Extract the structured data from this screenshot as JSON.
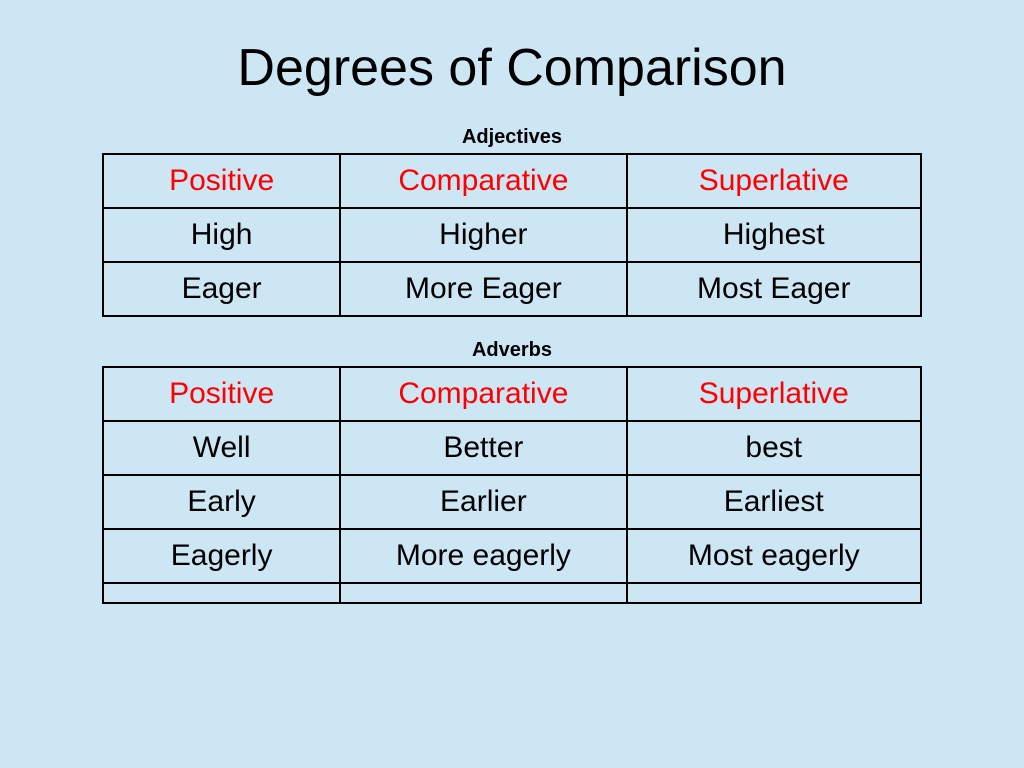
{
  "page": {
    "title": "Degrees of Comparison",
    "background_color": "#cce6f4",
    "title_fontsize": 52,
    "title_color": "#000000"
  },
  "tables": [
    {
      "label": "Adjectives",
      "label_fontsize": 20,
      "label_weight": "bold",
      "border_color": "#000000",
      "border_width": 2,
      "cell_fontsize": 30,
      "header_color": "#ff0000",
      "body_color": "#000000",
      "columns": [
        "Positive",
        "Comparative",
        "Superlative"
      ],
      "rows": [
        [
          "High",
          "Higher",
          "Highest"
        ],
        [
          "Eager",
          "More Eager",
          "Most Eager"
        ]
      ],
      "col_widths_pct": [
        29,
        35,
        36
      ]
    },
    {
      "label": "Adverbs",
      "label_fontsize": 20,
      "label_weight": "bold",
      "border_color": "#000000",
      "border_width": 2,
      "cell_fontsize": 30,
      "header_color": "#ff0000",
      "body_color": "#000000",
      "columns": [
        "Positive",
        "Comparative",
        "Superlative"
      ],
      "rows": [
        [
          "Well",
          "Better",
          "best"
        ],
        [
          "Early",
          "Earlier",
          "Earliest"
        ],
        [
          "Eagerly",
          "More eagerly",
          "Most eagerly"
        ]
      ],
      "col_widths_pct": [
        29,
        35,
        36
      ]
    }
  ]
}
